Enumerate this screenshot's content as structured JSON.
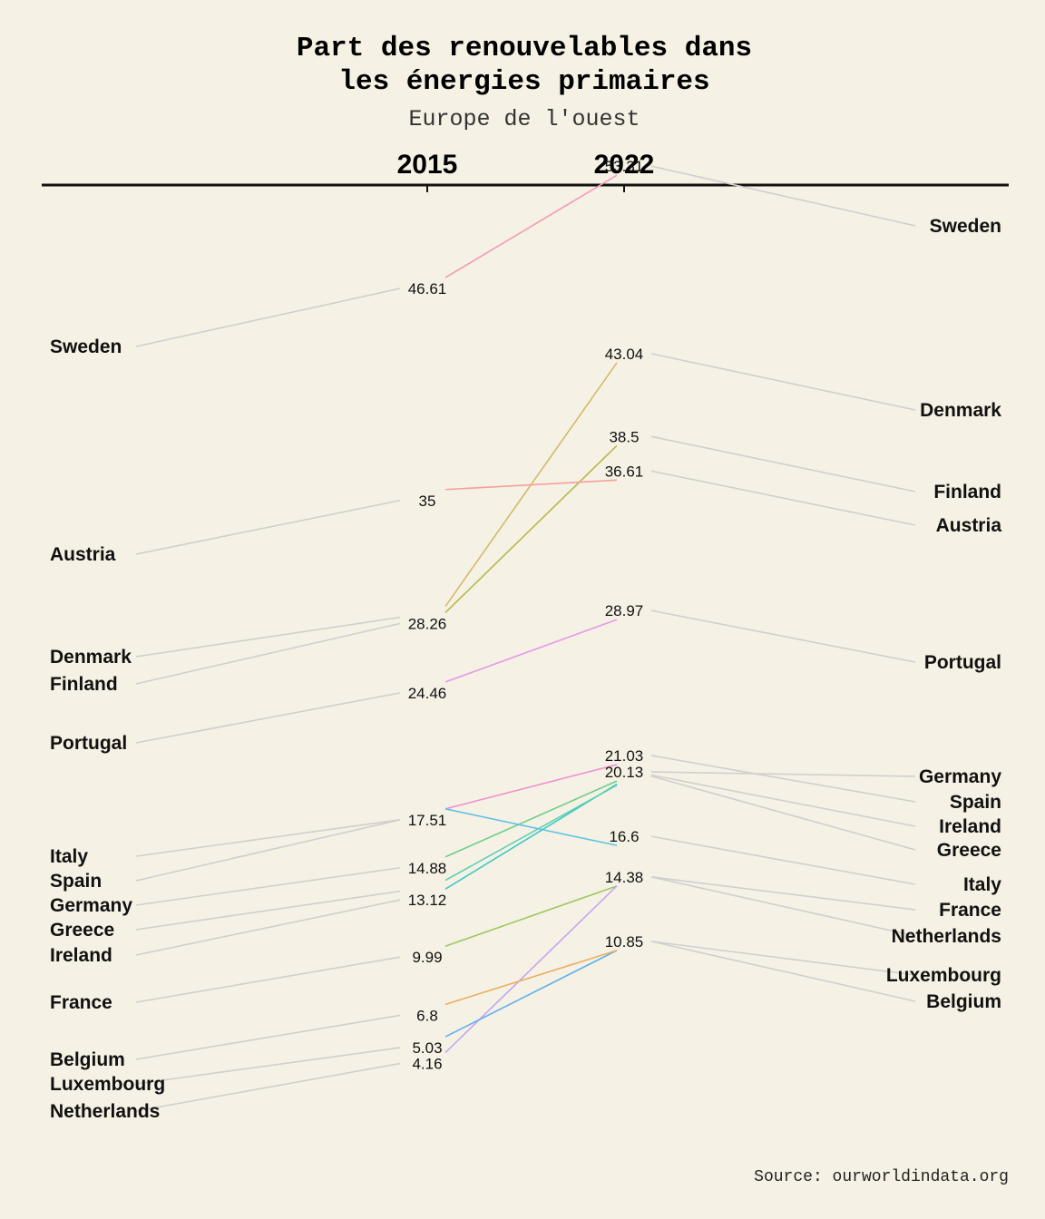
{
  "chart_data": {
    "type": "slope",
    "title_lines": [
      "Part des renouvelables dans",
      "les énergies primaires"
    ],
    "subtitle": "Europe de l'ouest",
    "years": [
      "2015",
      "2022"
    ],
    "source": "Source: ourworldindata.org",
    "series": [
      {
        "name": "Sweden",
        "v2015": 46.61,
        "v2022": 53.31,
        "color": "#f39ab6"
      },
      {
        "name": "Denmark",
        "v2015": 28.6,
        "v2022": 43.04,
        "color": "#d4b86a"
      },
      {
        "name": "Finland",
        "v2015": 28.26,
        "v2022": 38.5,
        "color": "#b8b84a"
      },
      {
        "name": "Austria",
        "v2015": 35,
        "v2022": 36.61,
        "color": "#f4a09a"
      },
      {
        "name": "Portugal",
        "v2015": 24.46,
        "v2022": 28.97,
        "color": "#e59ae8"
      },
      {
        "name": "Germany",
        "v2015": 14.88,
        "v2022": 20.13,
        "color": "#6ccf8a"
      },
      {
        "name": "Spain",
        "v2015": 17.51,
        "v2022": 21.03,
        "color": "#f18fd0"
      },
      {
        "name": "Ireland",
        "v2015": 13.12,
        "v2022": 19.96,
        "color": "#40c7c4"
      },
      {
        "name": "Greece",
        "v2015": 13.6,
        "v2022": 19.9,
        "color": "#5ccfb0"
      },
      {
        "name": "Italy",
        "v2015": 17.51,
        "v2022": 16.6,
        "color": "#5fc2e6"
      },
      {
        "name": "France",
        "v2015": 9.99,
        "v2022": 14.38,
        "color": "#9acb5e"
      },
      {
        "name": "Netherlands",
        "v2015": 4.16,
        "v2022": 14.38,
        "color": "#c4a6f2"
      },
      {
        "name": "Luxembourg",
        "v2015": 5.03,
        "v2022": 10.85,
        "color": "#62b0ea"
      },
      {
        "name": "Belgium",
        "v2015": 6.8,
        "v2022": 10.85,
        "color": "#e8b060"
      }
    ],
    "value_labels_2015": [
      "46.61",
      "35",
      "28.26",
      "24.46",
      "17.51",
      "14.88",
      "13.12",
      "9.99",
      "6.8",
      "5.03",
      "4.16"
    ],
    "value_labels_2022": [
      "53.31",
      "43.04",
      "38.5",
      "36.61",
      "28.97",
      "21.03",
      "20.13",
      "16.6",
      "14.38",
      "10.85"
    ],
    "left_label_order": [
      "Sweden",
      "Austria",
      "Denmark",
      "Finland",
      "Portugal",
      "Italy",
      "Spain",
      "Germany",
      "Greece",
      "Ireland",
      "France",
      "Belgium",
      "Luxembourg",
      "Netherlands"
    ],
    "right_label_order": [
      "Sweden",
      "Denmark",
      "Finland",
      "Austria",
      "Portugal",
      "Germany",
      "Spain",
      "Ireland",
      "Greece",
      "Italy",
      "France",
      "Netherlands",
      "Luxembourg",
      "Belgium"
    ]
  }
}
